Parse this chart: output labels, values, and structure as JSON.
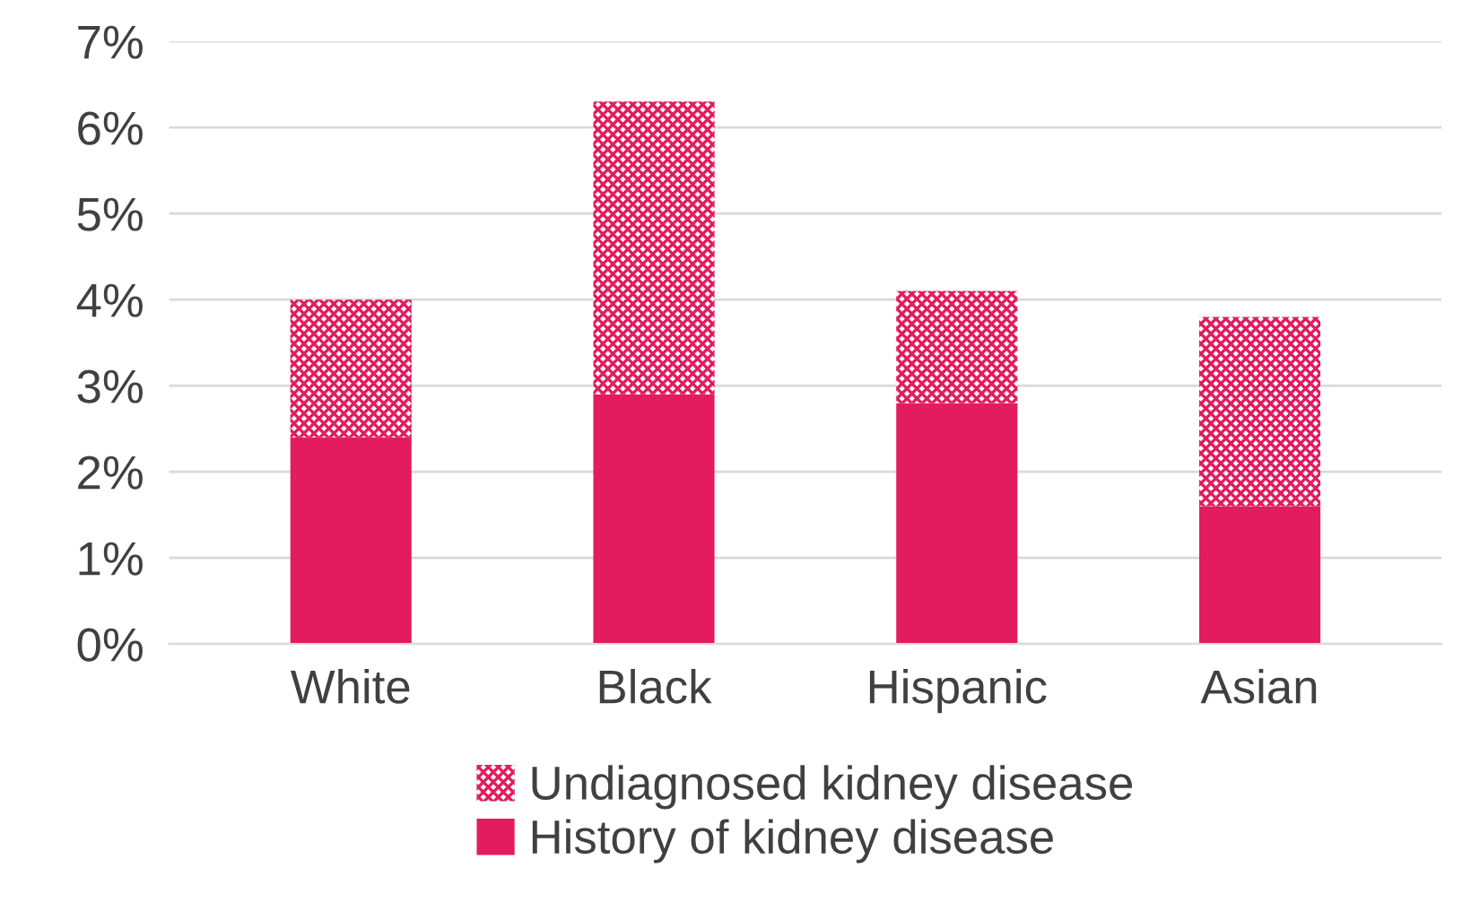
{
  "chart_data": {
    "type": "bar",
    "stacked": true,
    "categories": [
      "White",
      "Black",
      "Hispanic",
      "Asian"
    ],
    "series": [
      {
        "name": "History of kidney disease",
        "color": "#e31b5f",
        "values": [
          2.4,
          2.9,
          2.8,
          1.6
        ]
      },
      {
        "name": "Undiagnosed kidney disease",
        "color": "#e31b5f",
        "values": [
          1.6,
          3.4,
          1.3,
          2.2
        ]
      }
    ],
    "ylim": [
      0,
      7
    ],
    "yticks": [
      {
        "value": 0,
        "label": "0%"
      },
      {
        "value": 1,
        "label": "1%"
      },
      {
        "value": 2,
        "label": "2%"
      },
      {
        "value": 3,
        "label": "3%"
      },
      {
        "value": 4,
        "label": "4%"
      },
      {
        "value": 5,
        "label": "5%"
      },
      {
        "value": 6,
        "label": "6%"
      },
      {
        "value": 7,
        "label": "7%"
      }
    ],
    "grid": "y",
    "legend": "bottom"
  }
}
